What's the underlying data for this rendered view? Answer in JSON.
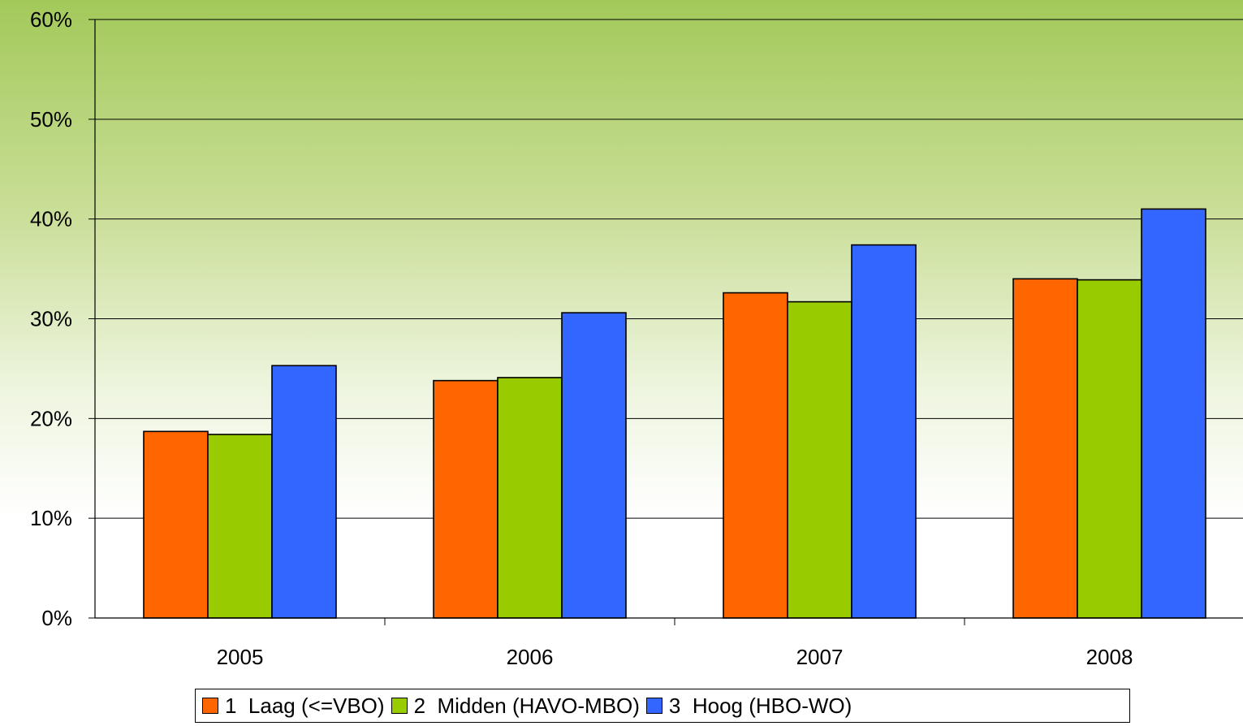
{
  "chart_data": {
    "type": "bar",
    "categories": [
      "2005",
      "2006",
      "2007",
      "2008"
    ],
    "series": [
      {
        "name": "1  Laag (<=VBO)",
        "color": "#ff6600",
        "values": [
          18.7,
          23.8,
          32.6,
          34.0
        ]
      },
      {
        "name": "2  Midden (HAVO-MBO)",
        "color": "#99cc00",
        "values": [
          18.4,
          24.1,
          31.7,
          33.9
        ]
      },
      {
        "name": "3  Hoog (HBO-WO)",
        "color": "#3366ff",
        "values": [
          25.3,
          30.6,
          37.4,
          41.0
        ]
      }
    ],
    "y_ticks": [
      "0%",
      "10%",
      "20%",
      "30%",
      "40%",
      "50%",
      "60%"
    ],
    "ylim": [
      0,
      60
    ],
    "title": "",
    "xlabel": "",
    "ylabel": "",
    "grid": true,
    "legend_position": "bottom"
  }
}
